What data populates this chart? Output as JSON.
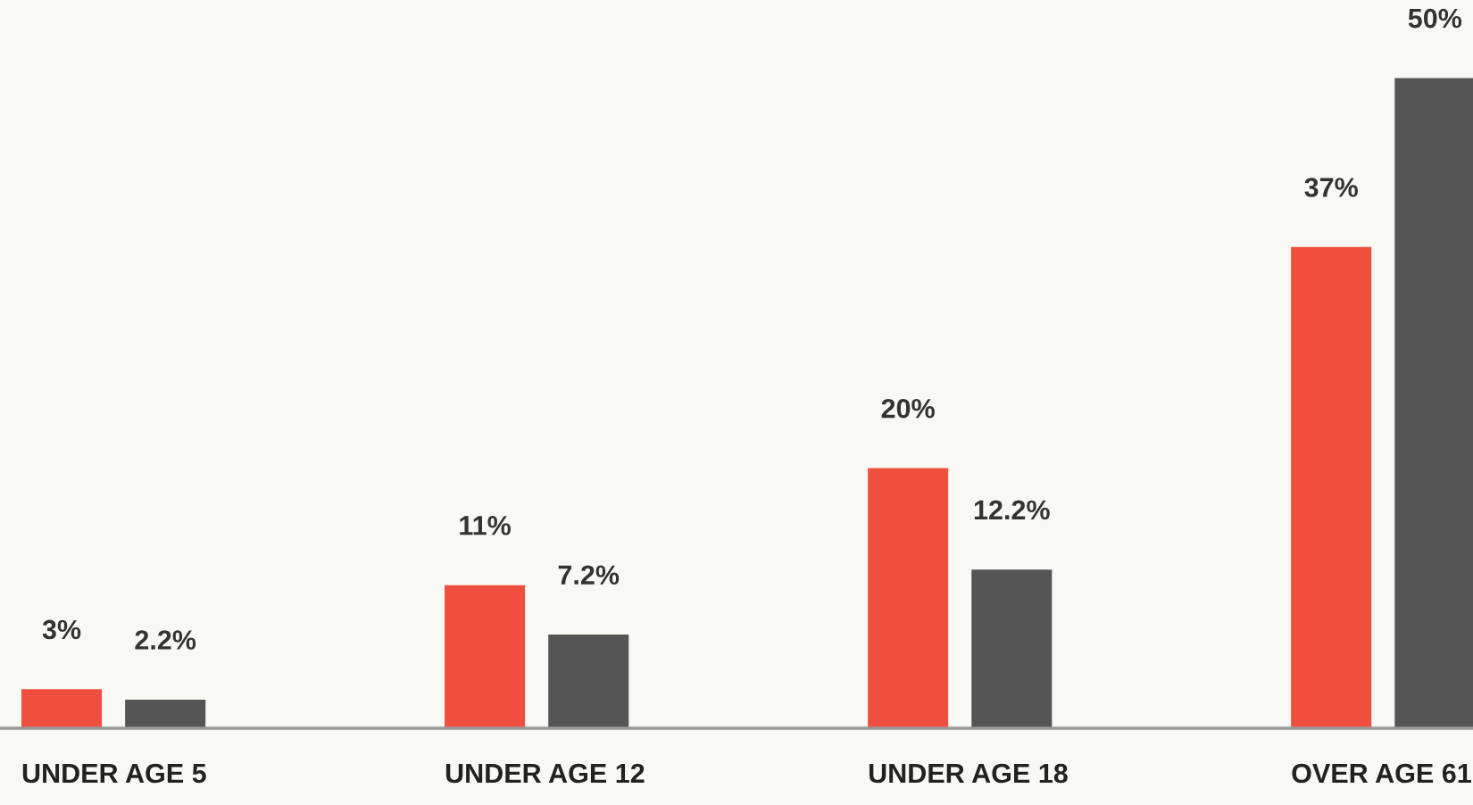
{
  "chart_data": {
    "type": "bar",
    "categories": [
      "UNDER AGE 5",
      "UNDER AGE 12",
      "UNDER AGE 18",
      "OVER AGE 61"
    ],
    "series": [
      {
        "color": "#f04e3e",
        "values": [
          3,
          11,
          20,
          37
        ],
        "value_labels": [
          "3%",
          "11%",
          "20%",
          "37%"
        ]
      },
      {
        "color": "#555555",
        "values": [
          2.2,
          7.2,
          12.2,
          50
        ],
        "value_labels": [
          "2.2%",
          "7.2%",
          "12.2%",
          "50%"
        ]
      }
    ],
    "ylim": [
      0,
      56
    ],
    "tick_labels": "x",
    "grid": false,
    "legend": false
  }
}
